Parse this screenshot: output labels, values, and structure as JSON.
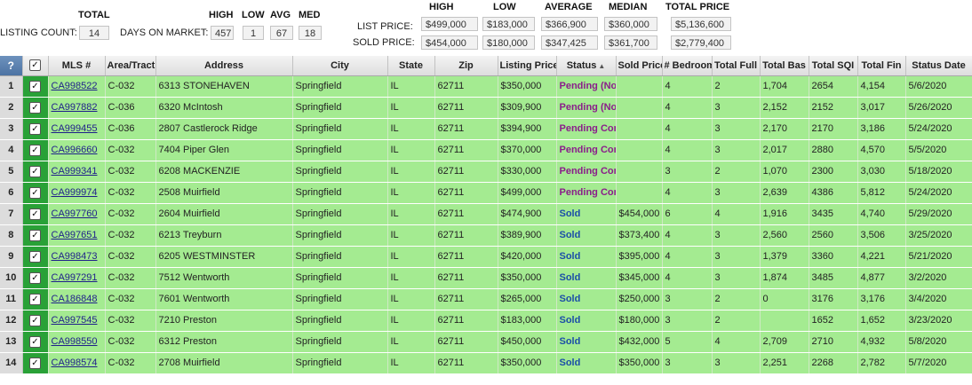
{
  "summary": {
    "total_header": "TOTAL",
    "listing_count_label": "LISTING COUNT:",
    "listing_count": "14",
    "days_on_market_label": "DAYS ON MARKET:",
    "dom_headers": {
      "high": "HIGH",
      "low": "LOW",
      "avg": "AVG",
      "med": "MED"
    },
    "dom_values": {
      "high": "457",
      "low": "1",
      "avg": "67",
      "med": "18"
    },
    "price_headers": {
      "high": "HIGH",
      "low": "LOW",
      "average": "AVERAGE",
      "median": "MEDIAN",
      "total": "TOTAL PRICE"
    },
    "list_price_label": "LIST PRICE:",
    "sold_price_label": "SOLD PRICE:",
    "list_price": {
      "high": "$499,000",
      "low": "$183,000",
      "average": "$366,900",
      "median": "$360,000",
      "total": "$5,136,600"
    },
    "sold_price": {
      "high": "$454,000",
      "low": "$180,000",
      "average": "$347,425",
      "median": "$361,700",
      "total": "$2,779,400"
    }
  },
  "table": {
    "columns": [
      "?",
      "",
      "MLS #",
      "Area/Tract",
      "Address",
      "City",
      "State",
      "Zip",
      "Listing Price",
      "Status",
      "Sold Price",
      "# Bedrooms",
      "Total Full",
      "Total Bas",
      "Total SQI",
      "Total Fin",
      "Status Date"
    ],
    "checkbox_mark": "✓",
    "rows": [
      {
        "n": "1",
        "mls": "CA998522",
        "area": "C-032",
        "address": "6313 STONEHAVEN",
        "city": "Springfield",
        "state": "IL",
        "zip": "62711",
        "list": "$350,000",
        "status": "Pending (No",
        "sold": "",
        "bed": "4",
        "full": "2",
        "bas": "1,704",
        "sqi": "2654",
        "fin": "4,154",
        "date": "5/6/2020"
      },
      {
        "n": "2",
        "mls": "CA997882",
        "area": "C-036",
        "address": "6320 McIntosh",
        "city": "Springfield",
        "state": "IL",
        "zip": "62711",
        "list": "$309,900",
        "status": "Pending (No",
        "sold": "",
        "bed": "4",
        "full": "3",
        "bas": "2,152",
        "sqi": "2152",
        "fin": "3,017",
        "date": "5/26/2020"
      },
      {
        "n": "3",
        "mls": "CA999455",
        "area": "C-036",
        "address": "2807 Castlerock Ridge",
        "city": "Springfield",
        "state": "IL",
        "zip": "62711",
        "list": "$394,900",
        "status": "Pending Con",
        "sold": "",
        "bed": "4",
        "full": "3",
        "bas": "2,170",
        "sqi": "2170",
        "fin": "3,186",
        "date": "5/24/2020"
      },
      {
        "n": "4",
        "mls": "CA996660",
        "area": "C-032",
        "address": "7404 Piper Glen",
        "city": "Springfield",
        "state": "IL",
        "zip": "62711",
        "list": "$370,000",
        "status": "Pending Con",
        "sold": "",
        "bed": "4",
        "full": "3",
        "bas": "2,017",
        "sqi": "2880",
        "fin": "4,570",
        "date": "5/5/2020"
      },
      {
        "n": "5",
        "mls": "CA999341",
        "area": "C-032",
        "address": "6208 MACKENZIE",
        "city": "Springfield",
        "state": "IL",
        "zip": "62711",
        "list": "$330,000",
        "status": "Pending Con",
        "sold": "",
        "bed": "3",
        "full": "2",
        "bas": "1,070",
        "sqi": "2300",
        "fin": "3,030",
        "date": "5/18/2020"
      },
      {
        "n": "6",
        "mls": "CA999974",
        "area": "C-032",
        "address": "2508 Muirfield",
        "city": "Springfield",
        "state": "IL",
        "zip": "62711",
        "list": "$499,000",
        "status": "Pending Con",
        "sold": "",
        "bed": "4",
        "full": "3",
        "bas": "2,639",
        "sqi": "4386",
        "fin": "5,812",
        "date": "5/24/2020"
      },
      {
        "n": "7",
        "mls": "CA997760",
        "area": "C-032",
        "address": "2604 Muirfield",
        "city": "Springfield",
        "state": "IL",
        "zip": "62711",
        "list": "$474,900",
        "status": "Sold",
        "sold": "$454,000",
        "bed": "6",
        "full": "4",
        "bas": "1,916",
        "sqi": "3435",
        "fin": "4,740",
        "date": "5/29/2020"
      },
      {
        "n": "8",
        "mls": "CA997651",
        "area": "C-032",
        "address": "6213 Treyburn",
        "city": "Springfield",
        "state": "IL",
        "zip": "62711",
        "list": "$389,900",
        "status": "Sold",
        "sold": "$373,400",
        "bed": "4",
        "full": "3",
        "bas": "2,560",
        "sqi": "2560",
        "fin": "3,506",
        "date": "3/25/2020"
      },
      {
        "n": "9",
        "mls": "CA998473",
        "area": "C-032",
        "address": "6205 WESTMINSTER",
        "city": "Springfield",
        "state": "IL",
        "zip": "62711",
        "list": "$420,000",
        "status": "Sold",
        "sold": "$395,000",
        "bed": "4",
        "full": "3",
        "bas": "1,379",
        "sqi": "3360",
        "fin": "4,221",
        "date": "5/21/2020"
      },
      {
        "n": "10",
        "mls": "CA997291",
        "area": "C-032",
        "address": "7512 Wentworth",
        "city": "Springfield",
        "state": "IL",
        "zip": "62711",
        "list": "$350,000",
        "status": "Sold",
        "sold": "$345,000",
        "bed": "4",
        "full": "3",
        "bas": "1,874",
        "sqi": "3485",
        "fin": "4,877",
        "date": "3/2/2020"
      },
      {
        "n": "11",
        "mls": "CA186848",
        "area": "C-032",
        "address": "7601 Wentworth",
        "city": "Springfield",
        "state": "IL",
        "zip": "62711",
        "list": "$265,000",
        "status": "Sold",
        "sold": "$250,000",
        "bed": "3",
        "full": "2",
        "bas": "0",
        "sqi": "3176",
        "fin": "3,176",
        "date": "3/4/2020"
      },
      {
        "n": "12",
        "mls": "CA997545",
        "area": "C-032",
        "address": "7210 Preston",
        "city": "Springfield",
        "state": "IL",
        "zip": "62711",
        "list": "$183,000",
        "status": "Sold",
        "sold": "$180,000",
        "bed": "3",
        "full": "2",
        "bas": "",
        "sqi": "1652",
        "fin": "1,652",
        "date": "3/23/2020"
      },
      {
        "n": "13",
        "mls": "CA998550",
        "area": "C-032",
        "address": "6312 Preston",
        "city": "Springfield",
        "state": "IL",
        "zip": "62711",
        "list": "$450,000",
        "status": "Sold",
        "sold": "$432,000",
        "bed": "5",
        "full": "4",
        "bas": "2,709",
        "sqi": "2710",
        "fin": "4,932",
        "date": "5/8/2020"
      },
      {
        "n": "14",
        "mls": "CA998574",
        "area": "C-032",
        "address": "2708 Muirfield",
        "city": "Springfield",
        "state": "IL",
        "zip": "62711",
        "list": "$350,000",
        "status": "Sold",
        "sold": "$350,000",
        "bed": "3",
        "full": "3",
        "bas": "2,251",
        "sqi": "2268",
        "fin": "2,782",
        "date": "5/7/2020"
      }
    ]
  }
}
